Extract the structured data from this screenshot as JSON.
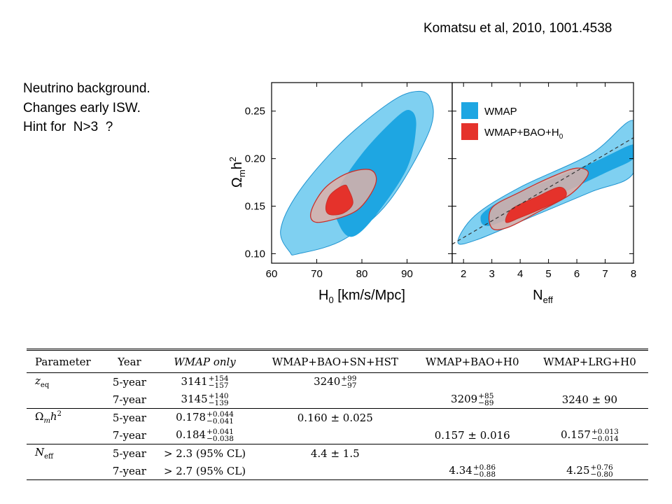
{
  "citation": "Komatsu et al, 2010, 1001.4538",
  "notes": [
    "Neutrino background.",
    "Changes early ISW.",
    "Hint for  N>3  ?"
  ],
  "chart_data": [
    {
      "type": "contour",
      "xlabel": "H0 [km/s/Mpc]",
      "ylabel": "Ωmh²",
      "xlim": [
        60,
        100
      ],
      "ylim": [
        0.09,
        0.28
      ],
      "xticks": [
        "60",
        "70",
        "80",
        "90"
      ],
      "yticks": [
        "0.10",
        "0.15",
        "0.20",
        "0.25"
      ],
      "series": [
        {
          "name": "WMAP",
          "color": "#1ea6e2",
          "color_outer": "#7fd0f1",
          "contour_68": [
            [
              74,
              0.16
            ],
            [
              80,
              0.205
            ],
            [
              88,
              0.245
            ],
            [
              91,
              0.25
            ],
            [
              92,
              0.233
            ],
            [
              90,
              0.19
            ],
            [
              83,
              0.14
            ],
            [
              78,
              0.118
            ],
            [
              75,
              0.13
            ]
          ],
          "contour_95": [
            [
              64,
              0.102
            ],
            [
              62,
              0.125
            ],
            [
              66,
              0.165
            ],
            [
              75,
              0.215
            ],
            [
              85,
              0.255
            ],
            [
              91,
              0.27
            ],
            [
              95,
              0.265
            ],
            [
              95,
              0.23
            ],
            [
              86,
              0.155
            ],
            [
              76,
              0.115
            ],
            [
              66,
              0.1
            ]
          ]
        },
        {
          "name": "WMAP+BAO+H0",
          "color": "#e5322b",
          "color_outer": "#ddb0a8",
          "contour_68": [
            [
              72,
              0.148
            ],
            [
              73,
              0.162
            ],
            [
              76,
              0.172
            ],
            [
              77,
              0.168
            ],
            [
              78,
              0.153
            ],
            [
              76,
              0.143
            ],
            [
              73,
              0.141
            ]
          ],
          "contour_95": [
            [
              69,
              0.135
            ],
            [
              69,
              0.148
            ],
            [
              72,
              0.17
            ],
            [
              77,
              0.185
            ],
            [
              82,
              0.188
            ],
            [
              83,
              0.173
            ],
            [
              79,
              0.146
            ],
            [
              72,
              0.134
            ]
          ]
        }
      ]
    },
    {
      "type": "contour",
      "xlabel": "Neff",
      "ylabel": "",
      "xlim": [
        1.6,
        8
      ],
      "ylim": [
        0.09,
        0.28
      ],
      "xticks": [
        "2",
        "3",
        "4",
        "5",
        "6",
        "7",
        "8"
      ],
      "legend": [
        "WMAP",
        "WMAP+BAO+H0"
      ],
      "legend_position": "top-right",
      "series": [
        {
          "name": "WMAP",
          "color": "#1ea6e2",
          "color_outer": "#7fd0f1",
          "contour_68": [
            [
              3.0,
              0.13
            ],
            [
              5.0,
              0.157
            ],
            [
              7.0,
              0.185
            ],
            [
              8.0,
              0.2
            ],
            [
              8.0,
              0.215
            ],
            [
              6.5,
              0.195
            ],
            [
              4.0,
              0.165
            ],
            [
              3.0,
              0.15
            ],
            [
              2.6,
              0.138
            ]
          ],
          "contour_95": [
            [
              1.8,
              0.112
            ],
            [
              2.4,
              0.14
            ],
            [
              4.0,
              0.17
            ],
            [
              6.5,
              0.205
            ],
            [
              8.0,
              0.24
            ],
            [
              8.0,
              0.185
            ],
            [
              6.5,
              0.165
            ],
            [
              4.5,
              0.14
            ],
            [
              2.5,
              0.115
            ]
          ]
        },
        {
          "name": "WMAP+BAO+H0",
          "color": "#e5322b",
          "color_outer": "#ddb0a8",
          "contour_68": [
            [
              3.5,
              0.133
            ],
            [
              3.7,
              0.147
            ],
            [
              4.6,
              0.16
            ],
            [
              5.4,
              0.17
            ],
            [
              5.6,
              0.16
            ],
            [
              4.8,
              0.148
            ],
            [
              4.0,
              0.138
            ]
          ],
          "contour_95": [
            [
              3.0,
              0.127
            ],
            [
              3.0,
              0.148
            ],
            [
              4.0,
              0.165
            ],
            [
              5.2,
              0.182
            ],
            [
              6.0,
              0.19
            ],
            [
              6.4,
              0.184
            ],
            [
              5.8,
              0.163
            ],
            [
              4.7,
              0.145
            ],
            [
              3.6,
              0.128
            ]
          ]
        }
      ],
      "dashed_line": [
        [
          1.6,
          0.11
        ],
        [
          8.0,
          0.222
        ]
      ]
    }
  ],
  "table": {
    "headers": [
      "Parameter",
      "Year",
      "WMAP only",
      "WMAP+BAO+SN+HST",
      "WMAP+BAO+H0",
      "WMAP+LRG+H0"
    ],
    "rows": [
      {
        "param": "z_eq",
        "year": "5-year",
        "wmap": {
          "v": "3141",
          "up": "+154",
          "dn": "−157"
        },
        "sn": {
          "v": "3240",
          "up": "+99",
          "dn": "−97"
        },
        "bao": null,
        "lrg": null
      },
      {
        "param": "",
        "year": "7-year",
        "wmap": {
          "v": "3145",
          "up": "+140",
          "dn": "−139"
        },
        "sn": null,
        "bao": {
          "v": "3209",
          "up": "+85",
          "dn": "−89"
        },
        "lrg": {
          "v": "3240 ± 90"
        }
      },
      {
        "param": "Ω_m h²",
        "year": "5-year",
        "wmap": {
          "v": "0.178",
          "up": "+0.044",
          "dn": "−0.041"
        },
        "sn": {
          "v": "0.160 ± 0.025"
        },
        "bao": null,
        "lrg": null
      },
      {
        "param": "",
        "year": "7-year",
        "wmap": {
          "v": "0.184",
          "up": "+0.041",
          "dn": "−0.038"
        },
        "sn": null,
        "bao": {
          "v": "0.157 ± 0.016"
        },
        "lrg": {
          "v": "0.157",
          "up": "+0.013",
          "dn": "−0.014"
        }
      },
      {
        "param": "N_eff",
        "year": "5-year",
        "wmap": {
          "v": "> 2.3 (95% CL)"
        },
        "sn": {
          "v": "4.4 ± 1.5"
        },
        "bao": null,
        "lrg": null
      },
      {
        "param": "",
        "year": "7-year",
        "wmap": {
          "v": "> 2.7 (95% CL)"
        },
        "sn": null,
        "bao": {
          "v": "4.34",
          "up": "+0.86",
          "dn": "−0.88"
        },
        "lrg": {
          "v": "4.25",
          "up": "+0.76",
          "dn": "−0.80"
        }
      }
    ]
  }
}
